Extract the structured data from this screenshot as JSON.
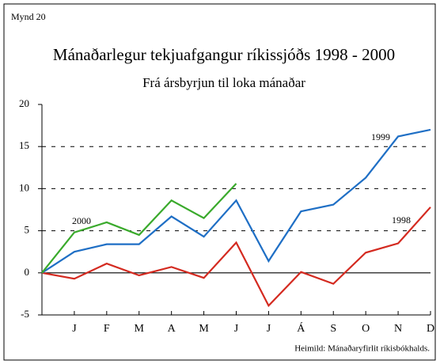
{
  "chart_data": {
    "type": "line",
    "label": "Mynd 20",
    "title": "Mánaðarlegur tekjuafgangur ríkissjóðs 1998 - 2000",
    "subtitle": "Frá ársbyrjun til loka mánaðar",
    "source": "Heimild: Mánaðaryfirlit ríkisbókhalds.",
    "categories": [
      null,
      "J",
      "F",
      "M",
      "A",
      "M",
      "J",
      "J",
      "Á",
      "S",
      "O",
      "N",
      "D"
    ],
    "series": [
      {
        "name": "1998",
        "color": "#d42a20",
        "values": [
          0,
          -0.7,
          1.1,
          -0.3,
          0.7,
          -0.6,
          3.6,
          -3.9,
          0.1,
          -1.3,
          2.4,
          3.5,
          7.8
        ]
      },
      {
        "name": "1999",
        "color": "#1f6fc5",
        "values": [
          0,
          2.5,
          3.4,
          3.4,
          6.7,
          4.3,
          8.6,
          1.4,
          7.3,
          8.1,
          11.3,
          16.2,
          17.0
        ]
      },
      {
        "name": "2000",
        "color": "#3aaa2c",
        "values": [
          0,
          4.8,
          6.0,
          4.5,
          8.6,
          6.5,
          10.6,
          null,
          null,
          null,
          null,
          null,
          null
        ]
      }
    ],
    "ylim": [
      -5,
      20
    ],
    "yticks": [
      -5,
      0,
      5,
      10,
      15,
      20
    ],
    "grid": true
  }
}
